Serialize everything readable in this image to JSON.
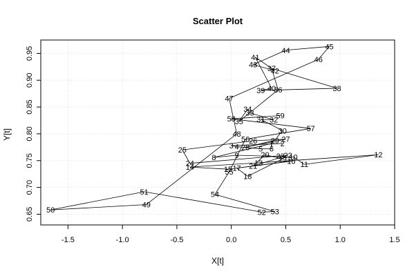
{
  "chart_data": {
    "type": "scatter",
    "title": "Scatter Plot",
    "xlabel": "X[t]",
    "ylabel": "Y[t]",
    "xlim": [
      -1.75,
      1.5
    ],
    "ylim": [
      0.63,
      0.975
    ],
    "xticks": [
      -1.5,
      -1.0,
      -0.5,
      0.0,
      0.5,
      1.0,
      1.5
    ],
    "xtick_labels": [
      "-1.5",
      "-1.0",
      "-0.5",
      "0.0",
      "0.5",
      "1.0",
      "1.5"
    ],
    "yticks": [
      0.65,
      0.7,
      0.75,
      0.8,
      0.85,
      0.9,
      0.95
    ],
    "ytick_labels": [
      "0.65",
      "0.70",
      "0.75",
      "0.80",
      "0.85",
      "0.90",
      "0.95"
    ],
    "grid": true,
    "connected": true,
    "point_labels_are_time_index": true,
    "points": [
      {
        "t": 2,
        "x": 0.47,
        "y": 0.782
      },
      {
        "t": 3,
        "x": 0.0,
        "y": 0.778
      },
      {
        "t": 4,
        "x": 0.05,
        "y": 0.776
      },
      {
        "t": 5,
        "x": 0.27,
        "y": 0.772
      },
      {
        "t": 6,
        "x": 0.37,
        "y": 0.772
      },
      {
        "t": 7,
        "x": 0.37,
        "y": 0.782
      },
      {
        "t": 8,
        "x": -0.16,
        "y": 0.756
      },
      {
        "t": 9,
        "x": 0.05,
        "y": 0.76
      },
      {
        "t": 10,
        "x": 0.57,
        "y": 0.757
      },
      {
        "t": 11,
        "x": 0.67,
        "y": 0.743
      },
      {
        "t": 12,
        "x": 1.35,
        "y": 0.761
      },
      {
        "t": 13,
        "x": 0.25,
        "y": 0.746
      },
      {
        "t": 14,
        "x": -0.38,
        "y": 0.738
      },
      {
        "t": 15,
        "x": -0.03,
        "y": 0.734
      },
      {
        "t": 16,
        "x": 0.55,
        "y": 0.749
      },
      {
        "t": 17,
        "x": 0.05,
        "y": 0.736
      },
      {
        "t": 18,
        "x": 0.15,
        "y": 0.721
      },
      {
        "t": 19,
        "x": 0.47,
        "y": 0.753
      },
      {
        "t": 20,
        "x": 0.31,
        "y": 0.761
      },
      {
        "t": 21,
        "x": 0.2,
        "y": 0.74
      },
      {
        "t": 22,
        "x": 0.52,
        "y": 0.76
      },
      {
        "t": 23,
        "x": 0.45,
        "y": 0.759
      },
      {
        "t": 24,
        "x": -0.38,
        "y": 0.745
      },
      {
        "t": 25,
        "x": -0.45,
        "y": 0.77
      },
      {
        "t": 26,
        "x": 0.2,
        "y": 0.787
      },
      {
        "t": 27,
        "x": 0.5,
        "y": 0.79
      },
      {
        "t": 28,
        "x": 0.13,
        "y": 0.775
      },
      {
        "t": 29,
        "x": 0.4,
        "y": 0.788
      },
      {
        "t": 30,
        "x": 0.47,
        "y": 0.806
      },
      {
        "t": 31,
        "x": 0.27,
        "y": 0.827
      },
      {
        "t": 32,
        "x": 0.39,
        "y": 0.826
      },
      {
        "t": 33,
        "x": 0.17,
        "y": 0.839
      },
      {
        "t": 34,
        "x": 0.15,
        "y": 0.846
      },
      {
        "t": 35,
        "x": 0.07,
        "y": 0.823
      },
      {
        "t": 36,
        "x": 0.43,
        "y": 0.882
      },
      {
        "t": 37,
        "x": 0.37,
        "y": 0.922
      },
      {
        "t": 38,
        "x": 0.97,
        "y": 0.885
      },
      {
        "t": 39,
        "x": 0.27,
        "y": 0.881
      },
      {
        "t": 40,
        "x": 0.37,
        "y": 0.885
      },
      {
        "t": 41,
        "x": 0.22,
        "y": 0.943
      },
      {
        "t": 42,
        "x": 0.4,
        "y": 0.918
      },
      {
        "t": 43,
        "x": 0.2,
        "y": 0.929
      },
      {
        "t": 44,
        "x": 0.5,
        "y": 0.956
      },
      {
        "t": 45,
        "x": 0.9,
        "y": 0.963
      },
      {
        "t": 46,
        "x": 0.8,
        "y": 0.939
      },
      {
        "t": 47,
        "x": -0.02,
        "y": 0.866
      },
      {
        "t": 48,
        "x": 0.05,
        "y": 0.8
      },
      {
        "t": 49,
        "x": -0.78,
        "y": 0.668
      },
      {
        "t": 50,
        "x": -1.66,
        "y": 0.658
      },
      {
        "t": 51,
        "x": -0.8,
        "y": 0.692
      },
      {
        "t": 52,
        "x": 0.28,
        "y": 0.654
      },
      {
        "t": 53,
        "x": 0.4,
        "y": 0.655
      },
      {
        "t": 54,
        "x": -0.15,
        "y": 0.687
      },
      {
        "t": 55,
        "x": -0.02,
        "y": 0.729
      },
      {
        "t": 56,
        "x": 0.13,
        "y": 0.79
      },
      {
        "t": 57,
        "x": 0.73,
        "y": 0.81
      },
      {
        "t": 58,
        "x": 0.0,
        "y": 0.828
      },
      {
        "t": 59,
        "x": 0.45,
        "y": 0.834
      }
    ]
  }
}
